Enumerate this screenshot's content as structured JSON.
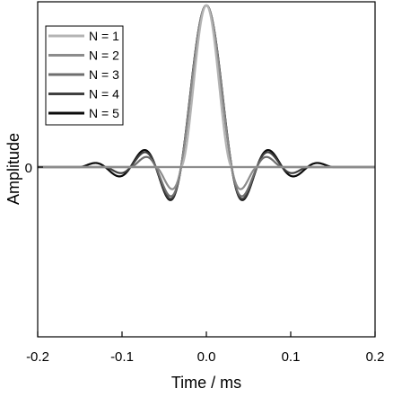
{
  "chart_data": {
    "type": "line",
    "xlabel": "Time / ms",
    "ylabel": "Amplitude",
    "xlim": [
      -0.2,
      0.2
    ],
    "ylim": [
      -1.0,
      1.0
    ],
    "x_ticks": [
      -0.2,
      -0.1,
      0.0,
      0.1,
      0.2
    ],
    "x_tick_labels": [
      "-0.2",
      "-0.1",
      "0.0",
      "0.1",
      "0.2"
    ],
    "y_ticks": [
      0
    ],
    "y_tick_labels": [
      "0"
    ],
    "grid": false,
    "legend_position": "top-left",
    "series": [
      {
        "name": "N = 1",
        "color": "#b4b4b4",
        "half_span_ms": 0.03
      },
      {
        "name": "N = 2",
        "color": "#8c8c8c",
        "half_span_ms": 0.06
      },
      {
        "name": "N = 3",
        "color": "#6e6e6e",
        "half_span_ms": 0.09
      },
      {
        "name": "N = 4",
        "color": "#404040",
        "half_span_ms": 0.12
      },
      {
        "name": "N = 5",
        "color": "#0a0a0a",
        "half_span_ms": 0.15
      }
    ]
  }
}
